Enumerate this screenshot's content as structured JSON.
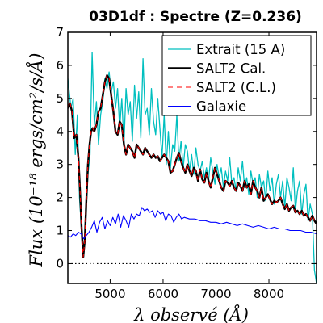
{
  "chart_data": {
    "type": "line",
    "title": "03D1df : Spectre (Z=0.236)",
    "xlabel": "λ observé (Å)",
    "ylabel": "Flux (10⁻¹⁸ ergs/cm²/s/Å)",
    "xlim": [
      4200,
      8900
    ],
    "ylim": [
      -0.6,
      7
    ],
    "xticks": [
      5000,
      6000,
      7000,
      8000
    ],
    "yticks": [
      0,
      1,
      2,
      3,
      4,
      5,
      6,
      7
    ],
    "grid": false,
    "legend_position": "top-right",
    "reference_line": {
      "y": 0,
      "style": "dotted"
    },
    "series": [
      {
        "name": "Extrait (15 A)",
        "color": "#00bfbf",
        "x": [
          4200,
          4260,
          4300,
          4340,
          4380,
          4420,
          4460,
          4500,
          4540,
          4580,
          4620,
          4660,
          4700,
          4740,
          4780,
          4820,
          4860,
          4900,
          4940,
          4980,
          5020,
          5060,
          5100,
          5140,
          5180,
          5220,
          5260,
          5300,
          5340,
          5380,
          5420,
          5460,
          5500,
          5540,
          5580,
          5620,
          5660,
          5700,
          5740,
          5780,
          5820,
          5860,
          5900,
          5940,
          5980,
          6020,
          6060,
          6100,
          6140,
          6180,
          6220,
          6260,
          6300,
          6340,
          6380,
          6420,
          6460,
          6500,
          6540,
          6580,
          6620,
          6660,
          6700,
          6740,
          6780,
          6820,
          6860,
          6900,
          6940,
          6980,
          7020,
          7060,
          7100,
          7140,
          7180,
          7220,
          7260,
          7300,
          7340,
          7380,
          7420,
          7460,
          7500,
          7540,
          7580,
          7620,
          7660,
          7700,
          7740,
          7780,
          7820,
          7860,
          7900,
          7940,
          7980,
          8020,
          8060,
          8100,
          8140,
          8180,
          8220,
          8260,
          8300,
          8340,
          8380,
          8420,
          8460,
          8500,
          8540,
          8580,
          8620,
          8660,
          8700,
          8740,
          8780,
          8820,
          8860,
          8900
        ],
        "y": [
          5.6,
          4.7,
          5.0,
          3.3,
          4.5,
          2.0,
          1.0,
          0.2,
          1.4,
          2.7,
          3.3,
          6.4,
          4.2,
          4.9,
          3.6,
          4.5,
          4.9,
          5.6,
          5.3,
          5.8,
          5.2,
          5.5,
          4.7,
          5.3,
          4.1,
          5.0,
          3.6,
          5.3,
          4.5,
          4.9,
          3.7,
          5.4,
          4.4,
          5.2,
          3.8,
          6.2,
          4.5,
          4.7,
          3.9,
          5.3,
          4.3,
          3.9,
          5.0,
          4.1,
          3.2,
          4.5,
          3.0,
          4.0,
          2.9,
          3.6,
          3.4,
          4.5,
          3.1,
          3.7,
          2.9,
          3.6,
          3.4,
          2.8,
          3.3,
          2.7,
          3.5,
          3.0,
          2.8,
          3.1,
          2.6,
          2.9,
          2.5,
          3.2,
          2.8,
          2.4,
          3.0,
          2.6,
          2.9,
          2.3,
          2.8,
          2.5,
          3.2,
          2.4,
          2.6,
          2.2,
          2.9,
          2.5,
          3.1,
          2.3,
          2.6,
          2.1,
          2.8,
          2.4,
          2.6,
          2.0,
          2.7,
          2.3,
          2.5,
          1.9,
          2.8,
          2.2,
          2.6,
          1.8,
          2.4,
          2.7,
          2.0,
          2.5,
          1.7,
          2.6,
          2.3,
          1.9,
          2.9,
          1.6,
          2.2,
          2.5,
          1.5,
          2.1,
          2.4,
          1.3,
          1.8,
          1.5,
          -0.2,
          -0.6
        ]
      },
      {
        "name": "SALT2 Cal.",
        "color": "#000000",
        "x": [
          4200,
          4240,
          4280,
          4320,
          4360,
          4400,
          4430,
          4460,
          4490,
          4520,
          4550,
          4580,
          4610,
          4640,
          4670,
          4700,
          4740,
          4780,
          4820,
          4860,
          4900,
          4940,
          4980,
          5020,
          5060,
          5100,
          5140,
          5180,
          5220,
          5260,
          5300,
          5340,
          5380,
          5420,
          5460,
          5500,
          5540,
          5580,
          5620,
          5660,
          5700,
          5740,
          5780,
          5820,
          5860,
          5900,
          5940,
          5980,
          6020,
          6060,
          6100,
          6140,
          6180,
          6220,
          6260,
          6300,
          6340,
          6380,
          6420,
          6460,
          6500,
          6540,
          6580,
          6620,
          6660,
          6700,
          6740,
          6780,
          6820,
          6860,
          6900,
          6940,
          6980,
          7020,
          7060,
          7100,
          7140,
          7180,
          7220,
          7260,
          7300,
          7340,
          7380,
          7420,
          7460,
          7500,
          7540,
          7580,
          7620,
          7660,
          7700,
          7740,
          7780,
          7820,
          7860,
          7900,
          7940,
          7980,
          8020,
          8060,
          8100,
          8140,
          8180,
          8220,
          8260,
          8300,
          8340,
          8380,
          8420,
          8460,
          8500,
          8540,
          8580,
          8620,
          8660,
          8700,
          8740,
          8780,
          8820,
          8860,
          8900
        ],
        "y": [
          4.7,
          4.85,
          4.6,
          3.8,
          3.9,
          3.2,
          2.2,
          1.1,
          0.2,
          0.7,
          1.9,
          3.0,
          3.6,
          4.0,
          4.1,
          4.0,
          4.2,
          4.6,
          4.7,
          5.1,
          5.5,
          5.7,
          5.6,
          5.1,
          4.6,
          4.0,
          3.9,
          4.3,
          4.2,
          3.6,
          3.3,
          3.6,
          3.5,
          3.4,
          3.2,
          3.6,
          3.5,
          3.4,
          3.3,
          3.5,
          3.4,
          3.3,
          3.2,
          3.3,
          3.2,
          3.25,
          3.1,
          3.2,
          3.3,
          3.2,
          3.1,
          2.75,
          2.8,
          3.0,
          3.2,
          3.35,
          3.1,
          2.9,
          2.75,
          3.0,
          2.8,
          2.65,
          2.9,
          2.8,
          2.5,
          2.85,
          2.55,
          2.45,
          2.75,
          2.5,
          2.3,
          2.6,
          2.9,
          2.7,
          2.5,
          2.3,
          2.2,
          2.5,
          2.45,
          2.35,
          2.5,
          2.3,
          2.2,
          2.45,
          2.35,
          2.2,
          2.5,
          2.3,
          2.4,
          2.1,
          2.5,
          2.3,
          2.2,
          2.0,
          2.3,
          1.9,
          2.0,
          2.1,
          1.95,
          1.8,
          1.9,
          1.85,
          1.9,
          2.0,
          1.8,
          1.65,
          1.8,
          1.6,
          1.7,
          1.75,
          1.55,
          1.6,
          1.5,
          1.6,
          1.45,
          1.5,
          1.4,
          1.3,
          1.45,
          1.3,
          1.2
        ]
      },
      {
        "name": "SALT2 (C.L.)",
        "color": "#ff0000",
        "x": [
          4200,
          4240,
          4280,
          4320,
          4360,
          4400,
          4430,
          4460,
          4490,
          4520,
          4550,
          4580,
          4610,
          4640,
          4670,
          4700,
          4740,
          4780,
          4820,
          4860,
          4900,
          4940,
          4980,
          5020,
          5060,
          5100,
          5140,
          5180,
          5220,
          5260,
          5300,
          5340,
          5380,
          5420,
          5460,
          5500,
          5540,
          5580,
          5620,
          5660,
          5700,
          5740,
          5780,
          5820,
          5860,
          5900,
          5940,
          5980,
          6020,
          6060,
          6100,
          6140,
          6180,
          6220,
          6260,
          6300,
          6340,
          6380,
          6420,
          6460,
          6500,
          6540,
          6580,
          6620,
          6660,
          6700,
          6740,
          6780,
          6820,
          6860,
          6900,
          6940,
          6980,
          7020,
          7060,
          7100,
          7140,
          7180,
          7220,
          7260,
          7300,
          7340,
          7380,
          7420,
          7460,
          7500,
          7540,
          7580,
          7620,
          7660,
          7700,
          7740,
          7780,
          7820,
          7860,
          7900,
          7940,
          7980,
          8020,
          8060,
          8100,
          8140,
          8180,
          8220,
          8260,
          8300,
          8340,
          8380,
          8420,
          8460,
          8500,
          8540,
          8580,
          8620,
          8660,
          8700,
          8740,
          8780,
          8820,
          8860,
          8900
        ],
        "y": [
          4.75,
          4.9,
          4.6,
          3.8,
          3.9,
          3.2,
          2.2,
          1.1,
          0.2,
          0.7,
          1.9,
          3.0,
          3.6,
          4.0,
          4.1,
          4.0,
          4.2,
          4.6,
          4.7,
          5.1,
          5.5,
          5.7,
          5.6,
          5.1,
          4.6,
          4.0,
          3.9,
          4.3,
          4.2,
          3.6,
          3.3,
          3.6,
          3.5,
          3.4,
          3.2,
          3.6,
          3.5,
          3.4,
          3.3,
          3.5,
          3.4,
          3.3,
          3.2,
          3.3,
          3.2,
          3.25,
          3.1,
          3.2,
          3.3,
          3.2,
          3.1,
          2.75,
          2.8,
          3.0,
          3.2,
          3.35,
          3.1,
          2.9,
          2.75,
          3.0,
          2.8,
          2.65,
          2.9,
          2.8,
          2.5,
          2.85,
          2.55,
          2.45,
          2.75,
          2.5,
          2.3,
          2.6,
          2.9,
          2.7,
          2.5,
          2.3,
          2.2,
          2.5,
          2.45,
          2.35,
          2.5,
          2.3,
          2.2,
          2.45,
          2.35,
          2.2,
          2.5,
          2.3,
          2.4,
          2.1,
          2.5,
          2.3,
          2.2,
          2.0,
          2.3,
          1.9,
          2.0,
          2.1,
          1.95,
          1.8,
          1.9,
          1.85,
          1.9,
          2.0,
          1.8,
          1.65,
          1.8,
          1.6,
          1.7,
          1.75,
          1.55,
          1.6,
          1.5,
          1.6,
          1.45,
          1.5,
          1.4,
          1.3,
          1.45,
          1.3,
          1.2
        ]
      },
      {
        "name": "Galaxie",
        "color": "#0000ff",
        "x": [
          4200,
          4250,
          4300,
          4350,
          4400,
          4450,
          4500,
          4550,
          4600,
          4650,
          4700,
          4750,
          4800,
          4850,
          4900,
          4950,
          5000,
          5050,
          5100,
          5150,
          5200,
          5250,
          5300,
          5350,
          5400,
          5450,
          5500,
          5550,
          5600,
          5650,
          5700,
          5750,
          5800,
          5850,
          5900,
          5950,
          6000,
          6050,
          6100,
          6150,
          6200,
          6250,
          6300,
          6350,
          6400,
          6500,
          6600,
          6700,
          6800,
          6900,
          7000,
          7100,
          7200,
          7300,
          7400,
          7500,
          7600,
          7700,
          7800,
          7900,
          8000,
          8100,
          8200,
          8300,
          8400,
          8500,
          8600,
          8700,
          8800,
          8900
        ],
        "y": [
          0.85,
          0.8,
          0.9,
          0.85,
          0.95,
          0.9,
          0.75,
          0.85,
          0.95,
          1.1,
          1.3,
          0.95,
          1.25,
          1.4,
          1.05,
          1.3,
          1.15,
          1.4,
          1.2,
          1.5,
          1.1,
          1.45,
          1.3,
          1.1,
          1.5,
          1.35,
          1.5,
          1.45,
          1.7,
          1.6,
          1.65,
          1.55,
          1.6,
          1.4,
          1.6,
          1.5,
          1.55,
          1.3,
          1.5,
          1.45,
          1.25,
          1.4,
          1.5,
          1.35,
          1.4,
          1.35,
          1.35,
          1.3,
          1.3,
          1.25,
          1.25,
          1.2,
          1.25,
          1.2,
          1.15,
          1.2,
          1.15,
          1.1,
          1.15,
          1.1,
          1.05,
          1.1,
          1.05,
          1.05,
          1.0,
          1.0,
          1.0,
          0.95,
          0.95,
          0.9
        ]
      }
    ]
  }
}
